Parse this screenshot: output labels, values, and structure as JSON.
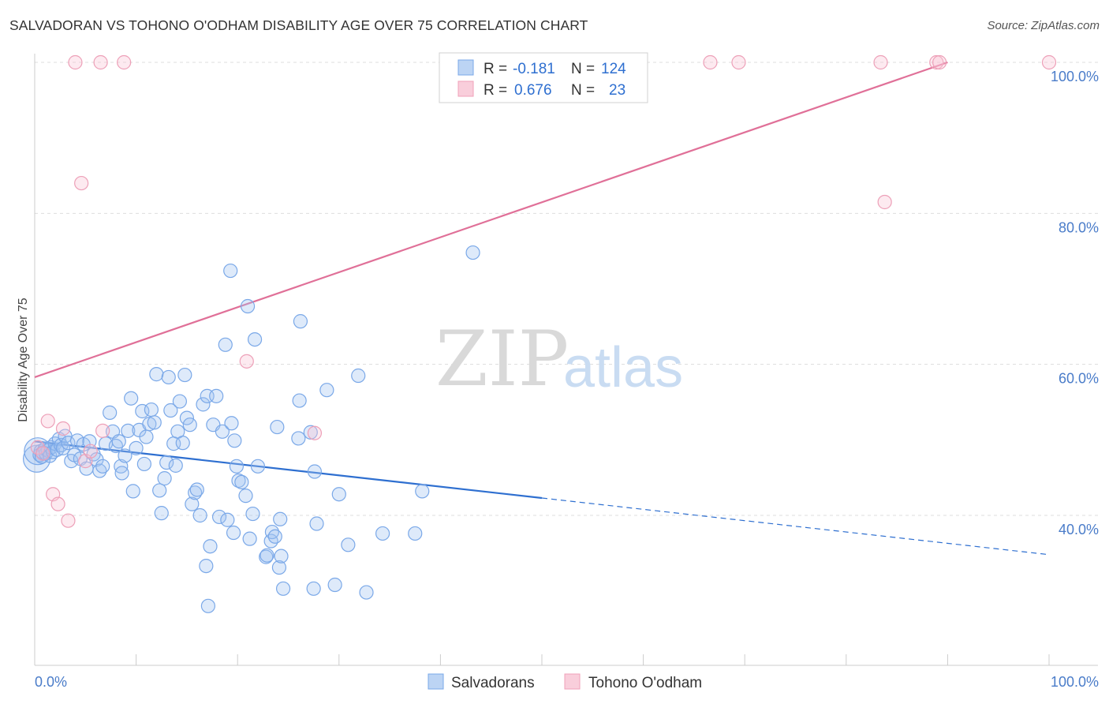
{
  "header": {
    "title": "SALVADORAN VS TOHONO O'ODHAM DISABILITY AGE OVER 75 CORRELATION CHART",
    "source": "Source: ZipAtlas.com"
  },
  "watermark": {
    "zip": "ZIP",
    "atlas": "atlas"
  },
  "chart_data": {
    "type": "scatter",
    "title": "SALVADORAN VS TOHONO O'ODHAM DISABILITY AGE OVER 75 CORRELATION CHART",
    "xlabel": "",
    "ylabel": "Disability Age Over 75",
    "xlim": [
      0,
      100
    ],
    "ylim": [
      20,
      102
    ],
    "x_tick_labels": [
      "0.0%",
      "100.0%"
    ],
    "y_ticks": [
      40,
      60,
      80,
      100
    ],
    "y_tick_labels": [
      "40.0%",
      "60.0%",
      "80.0%",
      "100.0%"
    ],
    "grid": "horizontal dashed",
    "legend_placement": "top-center",
    "colors": {
      "salvadorans": "#7aa8e8",
      "tohono": "#f0a0b8",
      "blue_line": "#2e6fd0",
      "pink_line": "#e07098"
    },
    "legend": [
      {
        "r_label": "R =",
        "r_value": "-0.181",
        "n_label": "N =",
        "n_value": "124"
      },
      {
        "r_label": "R =",
        "r_value": "0.676",
        "n_label": "N =",
        "n_value": "23"
      }
    ],
    "series": [
      {
        "name": "Salvadorans",
        "color": "#7aa8e8",
        "points": [
          [
            0.2,
            47.5
          ],
          [
            0.3,
            48.5
          ],
          [
            0.5,
            48
          ],
          [
            0.6,
            48.5
          ],
          [
            0.7,
            47.8
          ],
          [
            0.8,
            48.3
          ],
          [
            1.0,
            48.8
          ],
          [
            1.1,
            48.2
          ],
          [
            1.3,
            48.6
          ],
          [
            1.5,
            47.9
          ],
          [
            1.6,
            49.0
          ],
          [
            1.8,
            48.4
          ],
          [
            2.0,
            49.5
          ],
          [
            2.2,
            48.7
          ],
          [
            2.4,
            50.1
          ],
          [
            2.6,
            49.3
          ],
          [
            2.8,
            48.9
          ],
          [
            3.0,
            50.5
          ],
          [
            3.3,
            49.6
          ],
          [
            3.6,
            47.2
          ],
          [
            3.9,
            48.0
          ],
          [
            4.2,
            49.9
          ],
          [
            4.5,
            47.5
          ],
          [
            4.8,
            49.4
          ],
          [
            5.1,
            46.2
          ],
          [
            5.4,
            49.8
          ],
          [
            5.8,
            48.1
          ],
          [
            6.1,
            47.4
          ],
          [
            6.4,
            45.9
          ],
          [
            6.7,
            46.5
          ],
          [
            7.0,
            49.5
          ],
          [
            7.4,
            53.6
          ],
          [
            7.7,
            51.1
          ],
          [
            8.0,
            49.2
          ],
          [
            8.3,
            49.8
          ],
          [
            8.5,
            46.5
          ],
          [
            8.6,
            45.6
          ],
          [
            8.9,
            47.9
          ],
          [
            9.2,
            51.2
          ],
          [
            9.5,
            55.5
          ],
          [
            9.7,
            43.2
          ],
          [
            10.0,
            48.9
          ],
          [
            10.3,
            51.3
          ],
          [
            10.6,
            53.8
          ],
          [
            10.8,
            46.8
          ],
          [
            11.0,
            50.4
          ],
          [
            11.3,
            52.1
          ],
          [
            11.5,
            54.0
          ],
          [
            11.8,
            52.3
          ],
          [
            12.0,
            58.7
          ],
          [
            12.3,
            43.3
          ],
          [
            12.5,
            40.3
          ],
          [
            12.8,
            44.9
          ],
          [
            13.0,
            47.0
          ],
          [
            13.2,
            58.3
          ],
          [
            13.4,
            53.9
          ],
          [
            13.7,
            49.5
          ],
          [
            13.9,
            46.6
          ],
          [
            14.1,
            51.1
          ],
          [
            14.3,
            55.1
          ],
          [
            14.6,
            49.6
          ],
          [
            14.8,
            58.6
          ],
          [
            15.0,
            52.9
          ],
          [
            15.3,
            52.0
          ],
          [
            15.5,
            41.5
          ],
          [
            15.8,
            43.0
          ],
          [
            16.0,
            43.4
          ],
          [
            16.3,
            40.0
          ],
          [
            16.6,
            54.7
          ],
          [
            16.9,
            33.3
          ],
          [
            17.0,
            55.8
          ],
          [
            17.1,
            28.0
          ],
          [
            17.3,
            35.9
          ],
          [
            17.6,
            52.0
          ],
          [
            17.9,
            55.8
          ],
          [
            18.2,
            39.8
          ],
          [
            18.5,
            51.1
          ],
          [
            18.8,
            62.6
          ],
          [
            19.0,
            39.4
          ],
          [
            19.3,
            72.4
          ],
          [
            19.4,
            52.2
          ],
          [
            19.6,
            37.7
          ],
          [
            19.7,
            49.9
          ],
          [
            19.9,
            46.5
          ],
          [
            20.1,
            44.6
          ],
          [
            20.4,
            44.4
          ],
          [
            20.8,
            42.6
          ],
          [
            21.0,
            67.7
          ],
          [
            21.2,
            36.9
          ],
          [
            21.5,
            40.2
          ],
          [
            21.7,
            63.3
          ],
          [
            22.0,
            46.5
          ],
          [
            22.8,
            34.5
          ],
          [
            22.9,
            34.7
          ],
          [
            23.3,
            36.6
          ],
          [
            23.4,
            37.8
          ],
          [
            23.7,
            37.2
          ],
          [
            23.9,
            51.7
          ],
          [
            24.1,
            33.1
          ],
          [
            24.2,
            39.5
          ],
          [
            24.3,
            34.6
          ],
          [
            24.5,
            30.3
          ],
          [
            26.0,
            50.2
          ],
          [
            26.1,
            55.2
          ],
          [
            26.2,
            65.7
          ],
          [
            27.2,
            51.0
          ],
          [
            27.5,
            30.3
          ],
          [
            27.6,
            45.8
          ],
          [
            27.8,
            38.9
          ],
          [
            28.8,
            56.6
          ],
          [
            29.6,
            30.8
          ],
          [
            30.0,
            42.8
          ],
          [
            30.9,
            36.1
          ],
          [
            31.9,
            58.5
          ],
          [
            32.7,
            29.8
          ],
          [
            34.3,
            37.6
          ],
          [
            37.5,
            37.6
          ],
          [
            38.2,
            43.2
          ],
          [
            43.2,
            74.8
          ]
        ]
      },
      {
        "name": "Tohono O'odham",
        "color": "#f0a0b8",
        "points": [
          [
            0.3,
            49.0
          ],
          [
            0.8,
            48.2
          ],
          [
            1.3,
            52.5
          ],
          [
            1.8,
            42.8
          ],
          [
            2.3,
            41.5
          ],
          [
            2.8,
            51.5
          ],
          [
            3.3,
            39.3
          ],
          [
            4.0,
            100
          ],
          [
            4.6,
            84.0
          ],
          [
            5.0,
            47.2
          ],
          [
            5.5,
            48.5
          ],
          [
            6.5,
            100
          ],
          [
            6.7,
            51.2
          ],
          [
            8.8,
            100
          ],
          [
            20.9,
            60.4
          ],
          [
            27.6,
            50.9
          ],
          [
            66.6,
            100
          ],
          [
            69.4,
            100
          ],
          [
            83.4,
            100
          ],
          [
            83.8,
            81.5
          ],
          [
            88.9,
            100
          ],
          [
            89.2,
            100
          ],
          [
            100,
            100
          ]
        ]
      }
    ],
    "trendlines": [
      {
        "series": "Salvadorans",
        "x": [
          0,
          50
        ],
        "y": [
          49.8,
          42.3
        ],
        "dashed_extension_x": [
          50,
          100
        ],
        "dashed_extension_y": [
          42.3,
          34.8
        ]
      },
      {
        "series": "Tohono O'odham",
        "x": [
          0,
          90
        ],
        "y": [
          58.3,
          100
        ]
      }
    ]
  }
}
